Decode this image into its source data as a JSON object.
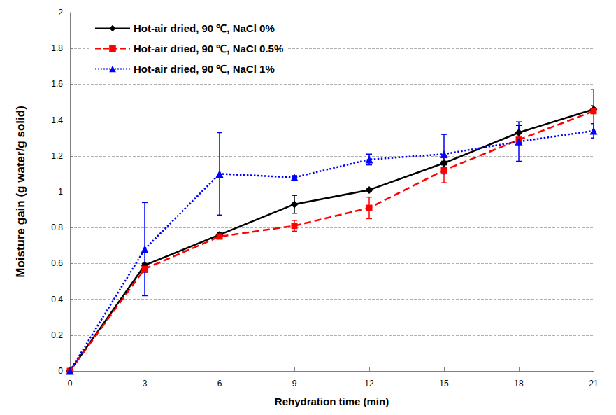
{
  "chart_data": {
    "type": "line",
    "x_label": "Rehydration time (min)",
    "y_label": "Moisture gain (g water/g solid)",
    "x": [
      0,
      3,
      6,
      9,
      12,
      15,
      18,
      21
    ],
    "xlim": [
      0,
      21
    ],
    "xticks": [
      0,
      3,
      6,
      9,
      12,
      15,
      18,
      21
    ],
    "ylim": [
      0,
      2
    ],
    "yticks": [
      0,
      0.2,
      0.4,
      0.6,
      0.8,
      1,
      1.2,
      1.4,
      1.6,
      1.8,
      2
    ],
    "grid": true,
    "legend": "upper left",
    "series": [
      {
        "name": "Hot-air dried, 90 ℃, NaCl 0%",
        "color": "#000000",
        "marker": "diamond",
        "line_style": "solid",
        "values": [
          0,
          0.59,
          0.76,
          0.93,
          1.01,
          1.16,
          1.33,
          1.46
        ],
        "errors": [
          0,
          0.01,
          0.01,
          0.05,
          0.01,
          0.01,
          0.04,
          0.02
        ]
      },
      {
        "name": "Hot-air dried, 90 ℃, NaCl 0.5%",
        "color": "#ff0000",
        "marker": "square",
        "line_style": "dashed",
        "values": [
          0,
          0.57,
          0.75,
          0.81,
          0.91,
          1.12,
          1.29,
          1.45
        ],
        "errors": [
          0,
          0.02,
          0.01,
          0.03,
          0.06,
          0.07,
          0.02,
          0.12
        ]
      },
      {
        "name": "Hot-air dried, 90 ℃, NaCl 1%",
        "color": "#0000ff",
        "marker": "triangle",
        "line_style": "dotted",
        "values": [
          0,
          0.68,
          1.1,
          1.08,
          1.18,
          1.21,
          1.28,
          1.34
        ],
        "errors": [
          0,
          0.26,
          0.23,
          0.01,
          0.03,
          0.11,
          0.11,
          0.04
        ]
      }
    ]
  }
}
